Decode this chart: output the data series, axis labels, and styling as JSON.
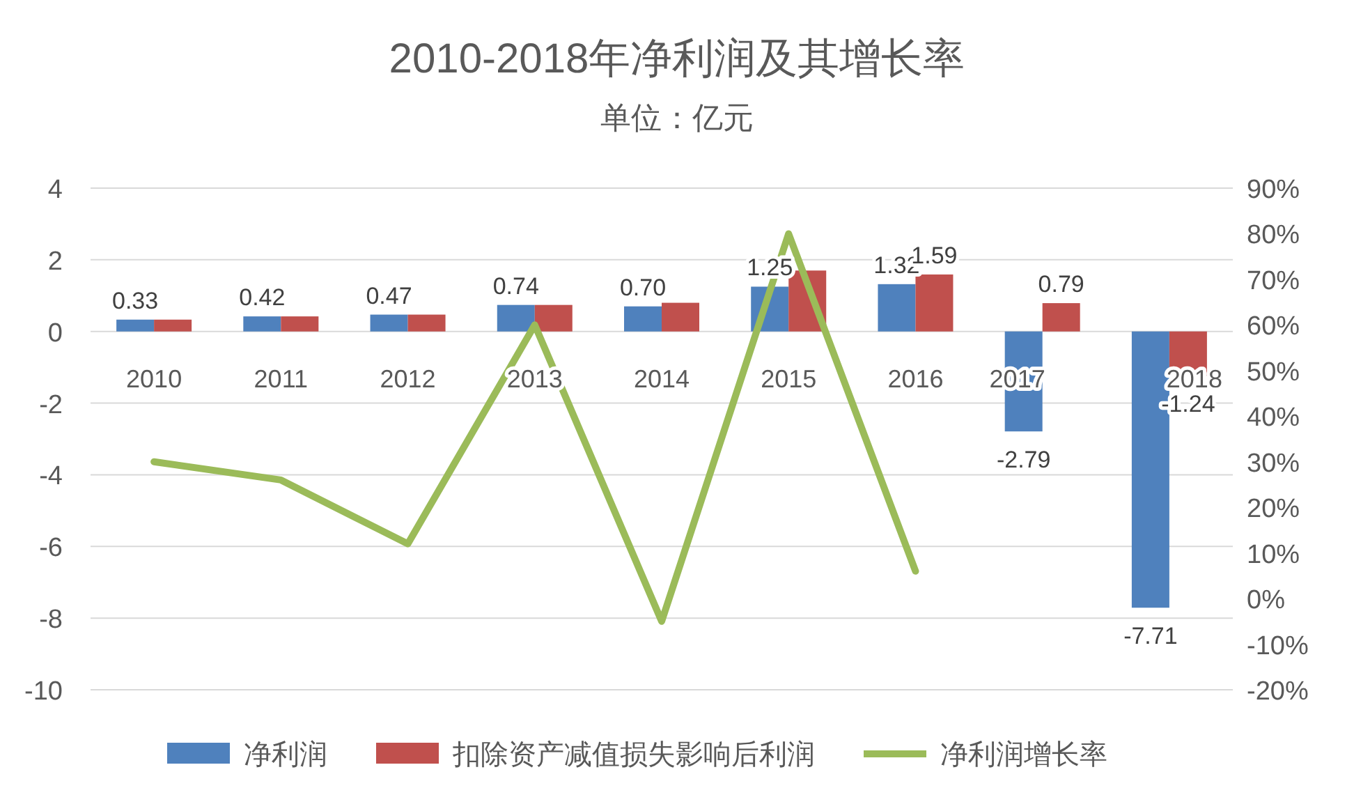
{
  "chart_data": {
    "type": "bar",
    "title": "2010-2018年净利润及其增长率",
    "subtitle": "单位：亿元",
    "categories": [
      "2010",
      "2011",
      "2012",
      "2013",
      "2014",
      "2015",
      "2016",
      "2017",
      "2018"
    ],
    "series": [
      {
        "name": "净利润",
        "color": "#4f81bd",
        "values": [
          0.33,
          0.42,
          0.47,
          0.74,
          0.7,
          1.25,
          1.32,
          -2.79,
          -7.71
        ],
        "value_labels": [
          "0.33",
          "0.42",
          "0.47",
          "0.74",
          "0.70",
          "1.25",
          "1.32",
          "-2.79",
          "-7.71"
        ]
      },
      {
        "name": "扣除资产减值损失影响后利润",
        "color": "#c0504d",
        "values": [
          0.33,
          0.42,
          0.47,
          0.74,
          0.8,
          1.7,
          1.59,
          0.79,
          -1.24
        ],
        "value_labels": [
          null,
          null,
          null,
          null,
          null,
          null,
          "1.59",
          "0.79",
          "-1.24"
        ]
      },
      {
        "name": "净利润增长率",
        "type": "line",
        "axis": "y2",
        "color": "#9bbb59",
        "values": [
          30,
          26,
          12,
          60,
          -5,
          80,
          6,
          null,
          null
        ]
      }
    ],
    "ylim": [
      -10,
      4
    ],
    "yticks": [
      -10,
      -8,
      -6,
      -4,
      -2,
      0,
      2,
      4
    ],
    "y2lim": [
      -20,
      90
    ],
    "y2ticks": [
      {
        "value": -20,
        "label": "-20%"
      },
      {
        "value": -10,
        "label": "-10%"
      },
      {
        "value": 0,
        "label": "0%"
      },
      {
        "value": 10,
        "label": "10%"
      },
      {
        "value": 20,
        "label": "20%"
      },
      {
        "value": 30,
        "label": "30%"
      },
      {
        "value": 40,
        "label": "40%"
      },
      {
        "value": 50,
        "label": "50%"
      },
      {
        "value": 60,
        "label": "60%"
      },
      {
        "value": 70,
        "label": "70%"
      },
      {
        "value": 80,
        "label": "80%"
      },
      {
        "value": 90,
        "label": "90%"
      }
    ],
    "grid": "y",
    "legend": "bottom",
    "marker": "none",
    "line_style": "solid"
  }
}
